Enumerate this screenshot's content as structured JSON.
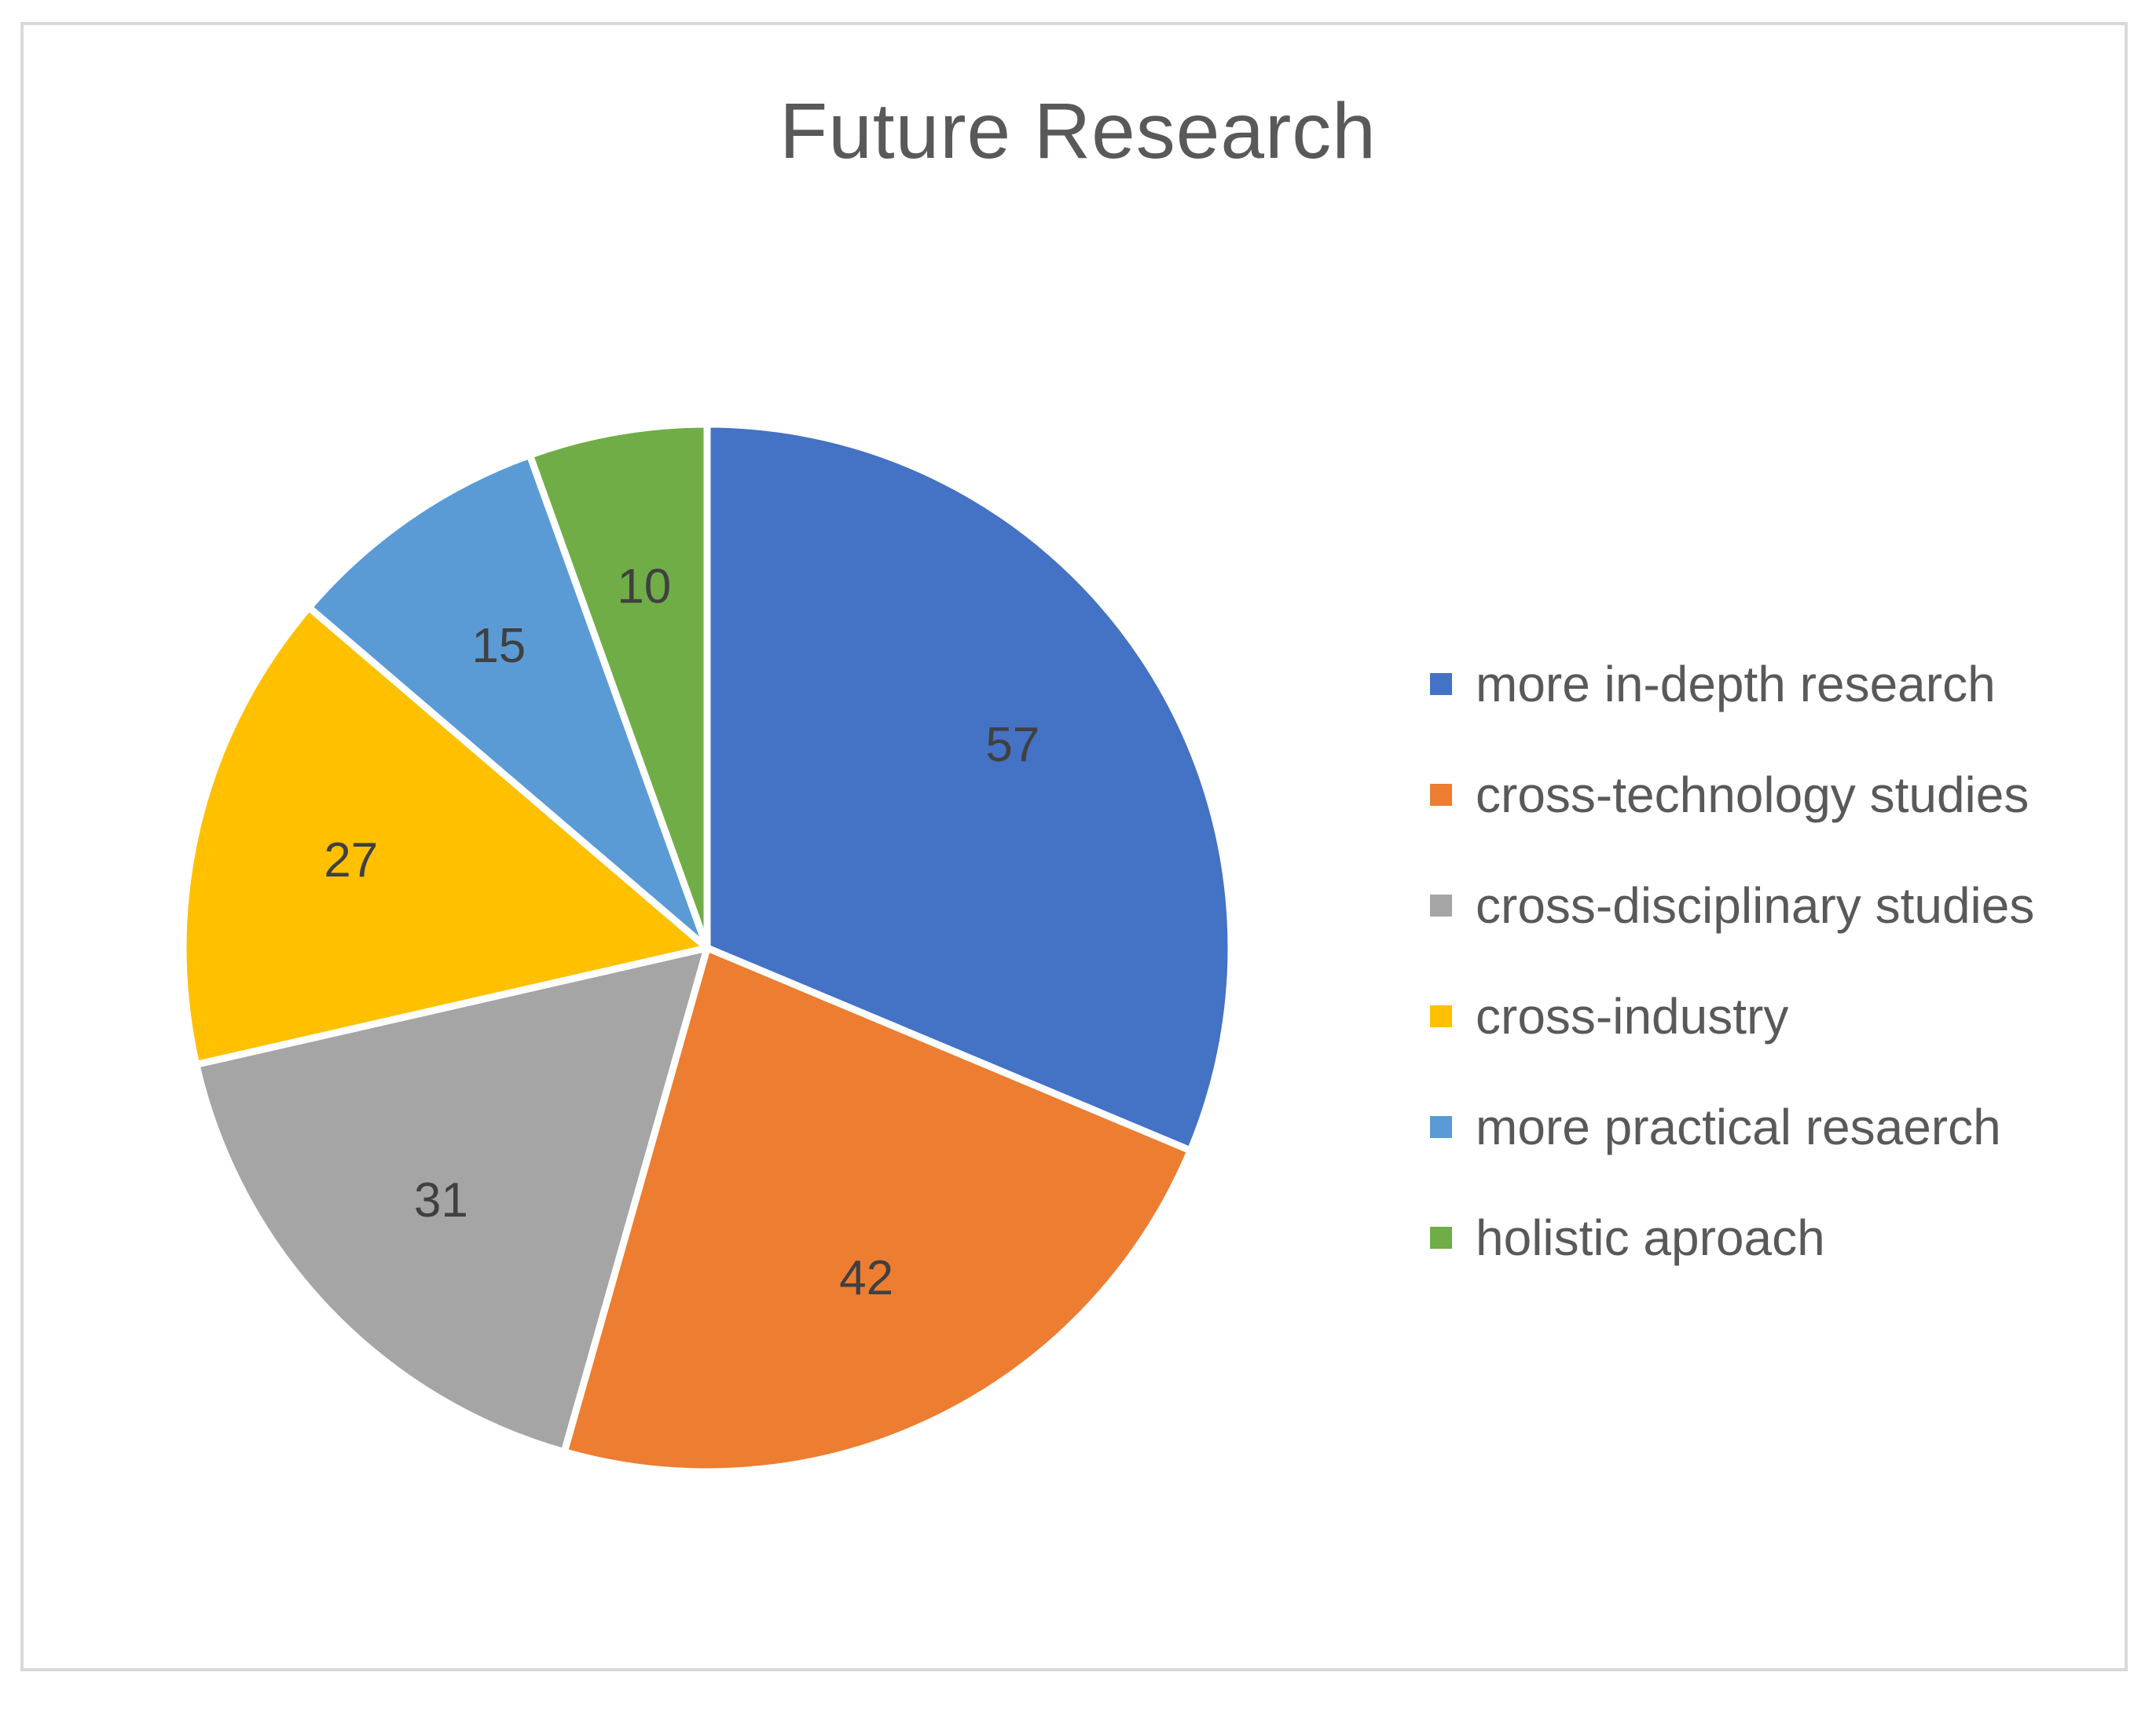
{
  "chart_data": {
    "type": "pie",
    "title": "Future Research",
    "categories": [
      "more in-depth research",
      "cross-technology studies",
      "cross-disciplinary studies",
      "cross-industry",
      "more practical resaerch",
      "holistic aproach"
    ],
    "values": [
      57,
      42,
      31,
      27,
      15,
      10
    ],
    "colors": [
      "#4472C4",
      "#ED7D31",
      "#A5A5A5",
      "#FFC000",
      "#5B9BD5",
      "#70AD47"
    ],
    "data_labels": [
      "57",
      "42",
      "31",
      "27",
      "15",
      "10"
    ],
    "legend": "right",
    "start_angle_deg": 0,
    "direction": "clockwise"
  }
}
